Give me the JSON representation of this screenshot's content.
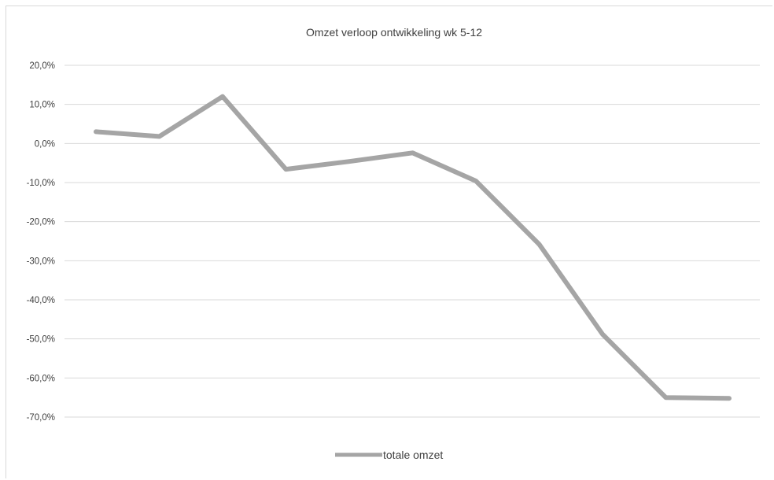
{
  "chart_data": {
    "type": "line",
    "title": "Omzet verloop ontwikkeling wk 5-12",
    "xlabel": "",
    "ylabel": "",
    "ylim": [
      -70,
      20
    ],
    "y_ticks": [
      20,
      10,
      0,
      -10,
      -20,
      -30,
      -40,
      -50,
      -60,
      -70
    ],
    "y_tick_labels": [
      "20,0%",
      "10,0%",
      "0,0%",
      "-10,0%",
      "-20,0%",
      "-30,0%",
      "-40,0%",
      "-50,0%",
      "-60,0%",
      "-70,0%"
    ],
    "grid": true,
    "legend": "bottom",
    "series": [
      {
        "name": "totale omzet",
        "color": "#a5a5a5",
        "values": [
          3.0,
          1.8,
          12.0,
          -6.6,
          -4.6,
          -2.4,
          -9.6,
          -25.8,
          -48.8,
          -65.0,
          -65.2
        ]
      }
    ]
  },
  "colors": {
    "line": "#a5a5a5",
    "grid": "#d9d9d9",
    "text": "#404040"
  }
}
